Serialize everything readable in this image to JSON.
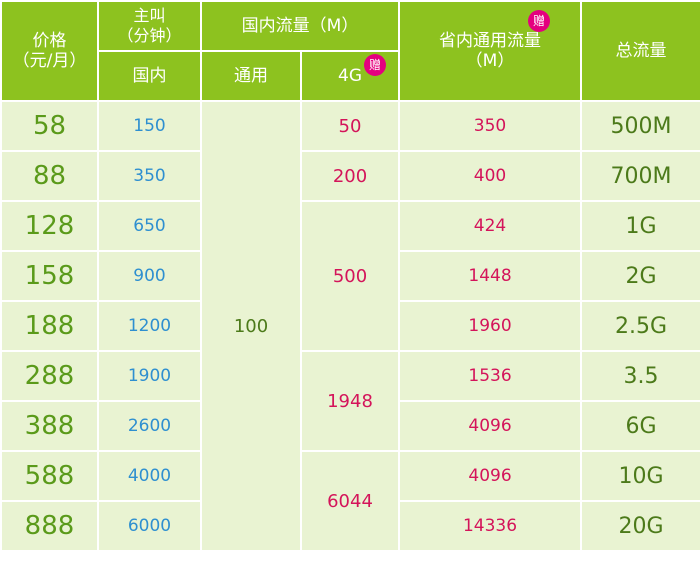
{
  "header": {
    "price": "价格\n（元/月）",
    "call": "主叫\n（分钟）",
    "domestic_data": "国内流量（M）",
    "province_data": "省内通用流量\n（M）",
    "total": "总流量",
    "domestic": "国内",
    "general": "通用",
    "g4": "4G",
    "gift": "赠"
  },
  "rows": [
    {
      "price": "58",
      "minutes": "150",
      "province": "350",
      "total": "500M"
    },
    {
      "price": "88",
      "minutes": "350",
      "province": "400",
      "total": "700M"
    },
    {
      "price": "128",
      "minutes": "650",
      "province": "424",
      "total": "1G"
    },
    {
      "price": "158",
      "minutes": "900",
      "province": "1448",
      "total": "2G"
    },
    {
      "price": "188",
      "minutes": "1200",
      "province": "1960",
      "total": "2.5G"
    },
    {
      "price": "288",
      "minutes": "1900",
      "province": "1536",
      "total": "3.5"
    },
    {
      "price": "388",
      "minutes": "2600",
      "province": "4096",
      "total": "6G"
    },
    {
      "price": "588",
      "minutes": "4000",
      "province": "4096",
      "total": "10G"
    },
    {
      "price": "888",
      "minutes": "6000",
      "province": "14336",
      "total": "20G"
    }
  ],
  "general_value": "100",
  "g4_values": [
    "50",
    "200",
    "500",
    "1948",
    "6044"
  ],
  "colors": {
    "header_bg": "#8dc21f",
    "cell_bg": "#e9f3d2",
    "price_color": "#5a9a1a",
    "minutes_color": "#2e8fd0",
    "pink": "#d4145a"
  }
}
